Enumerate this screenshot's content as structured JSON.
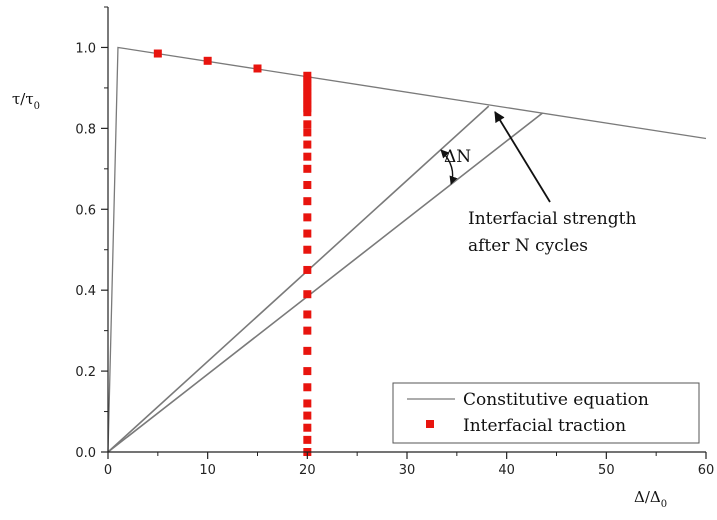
{
  "chart_data": {
    "type": "line",
    "xlabel": "Δ/Δ",
    "xlabel_sub": "0",
    "ylabel": "τ/τ",
    "ylabel_sub": "0",
    "xlim": [
      0,
      60
    ],
    "ylim": [
      0,
      1.1
    ],
    "xticks": [
      0,
      10,
      20,
      30,
      40,
      50,
      60
    ],
    "yticks": [
      0.0,
      0.2,
      0.4,
      0.6,
      0.8,
      1.0
    ],
    "series": [
      {
        "name": "Constitutive equation",
        "style": "line",
        "color": "#7a7a7a",
        "x": [
          0,
          1,
          60
        ],
        "y": [
          0,
          1.0,
          0.775
        ]
      },
      {
        "name": "Interfacial traction",
        "style": "marker-square",
        "color": "#e8140e",
        "x": [
          5,
          10,
          15,
          20,
          20,
          20,
          20,
          20,
          20,
          20,
          20,
          20,
          20,
          20,
          20,
          20,
          20,
          20,
          20,
          20,
          20,
          20,
          20,
          20,
          20,
          20,
          20,
          20,
          20,
          20,
          20,
          20,
          20,
          20,
          20
        ],
        "y": [
          0.985,
          0.967,
          0.948,
          0.93,
          0.92,
          0.91,
          0.9,
          0.89,
          0.88,
          0.87,
          0.86,
          0.85,
          0.84,
          0.81,
          0.79,
          0.76,
          0.73,
          0.7,
          0.66,
          0.62,
          0.58,
          0.54,
          0.5,
          0.45,
          0.39,
          0.34,
          0.3,
          0.25,
          0.2,
          0.16,
          0.12,
          0.09,
          0.06,
          0.03,
          0.0
        ]
      }
    ],
    "unloading_lines": [
      {
        "x": [
          0,
          38.2
        ],
        "y": [
          0,
          0.855
        ]
      },
      {
        "x": [
          0,
          43.6
        ],
        "y": [
          0,
          0.838
        ]
      }
    ],
    "annotations": {
      "delta_n": "ΔN",
      "strength_line1": "Interfacial strength",
      "strength_line2": "after N cycles"
    },
    "legend_position": "bottom-right",
    "grid": false
  }
}
